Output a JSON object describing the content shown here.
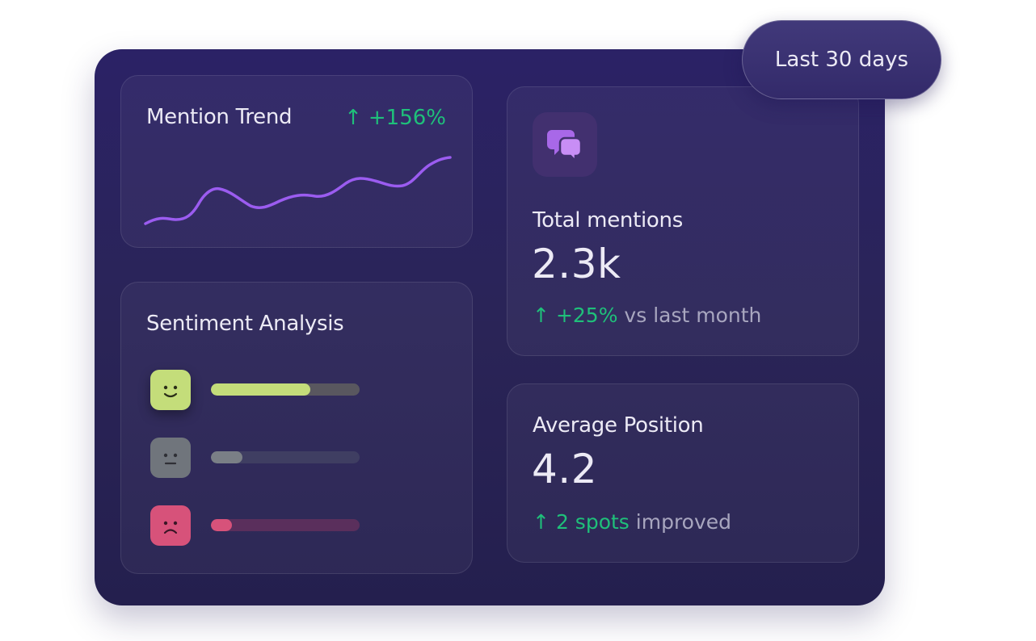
{
  "date_range": {
    "label": "Last 30 days"
  },
  "mention_trend": {
    "title": "Mention Trend",
    "change": "+156%",
    "trend_direction": "up",
    "line_color": "#9b5cf0"
  },
  "sentiment": {
    "title": "Sentiment Analysis",
    "rows": [
      {
        "sentiment": "positive",
        "icon": "smiling-face-icon",
        "share": 0.67,
        "color": "#c4dd7a",
        "track_color": "#59575f"
      },
      {
        "sentiment": "neutral",
        "icon": "neutral-face-icon",
        "share": 0.21,
        "color": "#7a7f86",
        "track_color": "#3f3e62"
      },
      {
        "sentiment": "negative",
        "icon": "frowning-face-icon",
        "share": 0.14,
        "color": "#d7527a",
        "track_color": "#5a2f5c"
      }
    ]
  },
  "total_mentions": {
    "icon": "chat-bubbles-icon",
    "title": "Total mentions",
    "value": "2.3k",
    "change": "+25%",
    "comparison": "vs last month"
  },
  "average_position": {
    "title": "Average Position",
    "value": "4.2",
    "change": "2 spots",
    "comparison": "improved"
  },
  "colors": {
    "accent_green": "#1fc07a",
    "background": "#2a2360",
    "text": "#eceaf5"
  }
}
